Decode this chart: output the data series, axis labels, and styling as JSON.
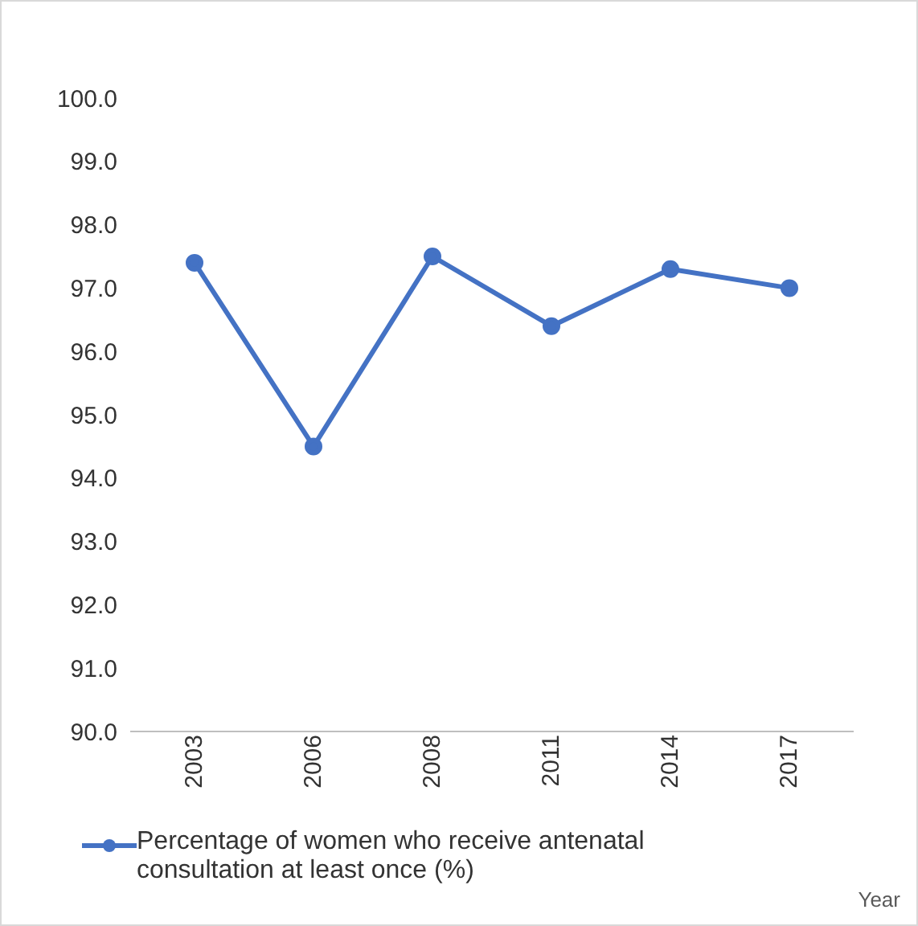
{
  "chart_data": {
    "type": "line",
    "xlabel": "Year",
    "categories": [
      "2003",
      "2006",
      "2008",
      "2011",
      "2014",
      "2017"
    ],
    "series": [
      {
        "name": "Percentage of women who receive antenatal consultation at least once (%)",
        "color": "#4472c4",
        "values": [
          97.4,
          94.5,
          97.5,
          96.4,
          97.3,
          97.0
        ]
      }
    ],
    "ylim": [
      90,
      100
    ],
    "yticks": [
      {
        "value": 90,
        "label": "90.0"
      },
      {
        "value": 91,
        "label": "91.0"
      },
      {
        "value": 92,
        "label": "92.0"
      },
      {
        "value": 93,
        "label": "93.0"
      },
      {
        "value": 94,
        "label": "94.0"
      },
      {
        "value": 95,
        "label": "95.0"
      },
      {
        "value": 96,
        "label": "96.0"
      },
      {
        "value": 97,
        "label": "97.0"
      },
      {
        "value": 98,
        "label": "98.0"
      },
      {
        "value": 99,
        "label": "99.0"
      },
      {
        "value": 100,
        "label": "100.0"
      }
    ],
    "grid": false,
    "legend": "bottom",
    "marker": "circle",
    "line_style": "solid"
  }
}
